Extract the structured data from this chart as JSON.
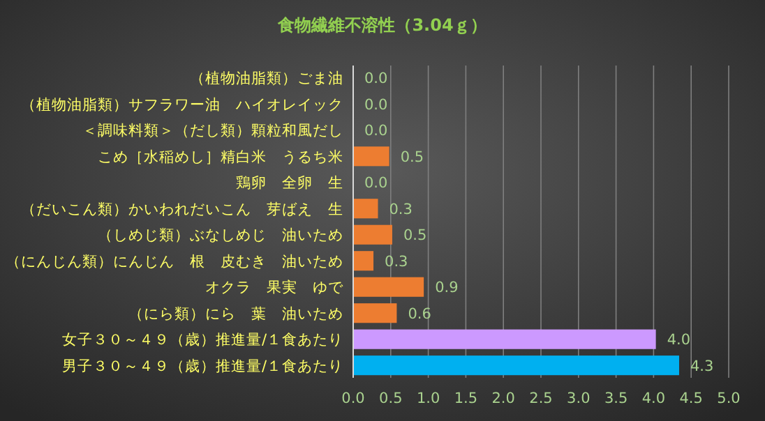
{
  "chart_data": {
    "type": "bar",
    "orientation": "horizontal",
    "title": "食物繊維不溶性（3.04ｇ）",
    "categories": [
      "（植物油脂類）ごま油",
      "（植物油脂類）サフラワー油　ハイオレイック",
      "＜調味料類＞（だし類）顆粒和風だし",
      "こめ［水稲めし］精白米　うるち米",
      "鶏卵　全卵　生",
      "（だいこん類）かいわれだいこん　芽ばえ　生",
      "（しめじ類）ぶなしめじ　油いため",
      "（にんじん類）にんじん　根　皮むき　油いため",
      "オクラ　果実　ゆで",
      "（にら類）にら　葉　油いため",
      "女子３０～４９（歳）推進量/１食あたり",
      "男子３０～４９（歳）推進量/１食あたり"
    ],
    "values": [
      0,
      0,
      0,
      0.48,
      0,
      0.33,
      0.52,
      0.27,
      0.94,
      0.58,
      4.03,
      4.34
    ],
    "value_labels": [
      "0.0",
      "0.0",
      "0.0",
      "0.5",
      "0.0",
      "0.3",
      "0.5",
      "0.3",
      "0.9",
      "0.6",
      "4.0",
      "4.3"
    ],
    "colors": [
      "#ed7d31",
      "#ed7d31",
      "#ed7d31",
      "#ed7d31",
      "#ed7d31",
      "#ed7d31",
      "#ed7d31",
      "#ed7d31",
      "#ed7d31",
      "#ed7d31",
      "#cc99ff",
      "#00b0f0"
    ],
    "xlim": [
      0,
      5
    ],
    "xticks": [
      "0.0",
      "0.5",
      "1.0",
      "1.5",
      "2.0",
      "2.5",
      "3.0",
      "3.5",
      "4.0",
      "4.5",
      "5.0"
    ],
    "grid": "x"
  }
}
